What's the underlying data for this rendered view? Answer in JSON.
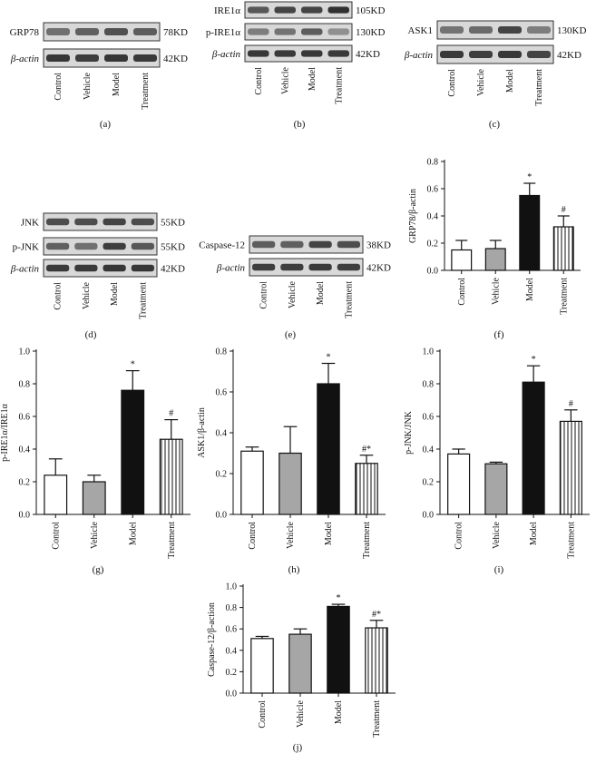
{
  "blots": [
    {
      "caption": "(a)",
      "lanes": [
        "Control",
        "Vehicle",
        "Model",
        "Treatment"
      ],
      "rows": [
        {
          "label": "GRP78",
          "italic": false,
          "kd": "78KD",
          "density": [
            0.62,
            0.7,
            0.78,
            0.72
          ]
        },
        {
          "label": "β-actin",
          "italic": true,
          "kd": "42KD",
          "density": [
            0.92,
            0.88,
            0.92,
            0.9
          ]
        }
      ]
    },
    {
      "caption": "(b)",
      "lanes": [
        "Control",
        "Vehicle",
        "Model",
        "Treatment"
      ],
      "rows": [
        {
          "label": "IRE1α",
          "italic": false,
          "kd": "105KD",
          "density": [
            0.75,
            0.85,
            0.85,
            0.95
          ]
        },
        {
          "label": "p-IRE1α",
          "italic": false,
          "kd": "130KD",
          "density": [
            0.55,
            0.6,
            0.72,
            0.45
          ]
        },
        {
          "label": "β-actin",
          "italic": true,
          "kd": "42KD",
          "density": [
            0.92,
            0.9,
            0.92,
            0.9
          ]
        }
      ]
    },
    {
      "caption": "(c)",
      "lanes": [
        "Control",
        "Vehicle",
        "Model",
        "Treatment"
      ],
      "rows": [
        {
          "label": "ASK1",
          "italic": false,
          "kd": "130KD",
          "density": [
            0.6,
            0.65,
            0.85,
            0.55
          ]
        },
        {
          "label": "β-actin",
          "italic": true,
          "kd": "42KD",
          "density": [
            0.9,
            0.88,
            0.92,
            0.85
          ]
        }
      ]
    },
    {
      "caption": "(d)",
      "lanes": [
        "Control",
        "Vehicle",
        "Model",
        "Treatment"
      ],
      "rows": [
        {
          "label": "JNK",
          "italic": false,
          "kd": "55KD",
          "density": [
            0.8,
            0.8,
            0.85,
            0.8
          ]
        },
        {
          "label": "p-JNK",
          "italic": false,
          "kd": "55KD",
          "density": [
            0.7,
            0.62,
            0.88,
            0.75
          ]
        },
        {
          "label": "β-actin",
          "italic": true,
          "kd": "42KD",
          "density": [
            0.9,
            0.9,
            0.92,
            0.92
          ]
        }
      ]
    },
    {
      "caption": "(e)",
      "lanes": [
        "Control",
        "Vehicle",
        "Model",
        "Treatment"
      ],
      "rows": [
        {
          "label": "Caspase-12",
          "italic": false,
          "kd": "38KD",
          "density": [
            0.72,
            0.7,
            0.85,
            0.8
          ]
        },
        {
          "label": "β-actin",
          "italic": true,
          "kd": "42KD",
          "density": [
            0.88,
            0.88,
            0.9,
            0.88
          ]
        }
      ]
    }
  ],
  "chart_data": [
    {
      "type": "bar",
      "caption": "(f)",
      "ylabel": "GRP78/β-actin",
      "categories": [
        "Control",
        "Vehicle",
        "Model",
        "Treatment"
      ],
      "values": [
        0.15,
        0.16,
        0.55,
        0.32
      ],
      "errors": [
        0.07,
        0.06,
        0.09,
        0.08
      ],
      "marks": [
        "",
        "",
        "*",
        "#"
      ],
      "ylim": [
        0,
        0.8
      ],
      "ticks": [
        "0.0",
        "0.2",
        "0.4",
        "0.6",
        "0.8"
      ],
      "fills": [
        "white",
        "gray",
        "black",
        "stripes"
      ]
    },
    {
      "type": "bar",
      "caption": "(g)",
      "ylabel": "p-IRE1α/IRE1α",
      "categories": [
        "Control",
        "Vehicle",
        "Model",
        "Treatment"
      ],
      "values": [
        0.24,
        0.2,
        0.76,
        0.46
      ],
      "errors": [
        0.1,
        0.04,
        0.12,
        0.12
      ],
      "marks": [
        "",
        "",
        "*",
        "#"
      ],
      "ylim": [
        0,
        1.0
      ],
      "ticks": [
        "0.0",
        "0.2",
        "0.4",
        "0.6",
        "0.8",
        "1.0"
      ],
      "fills": [
        "white",
        "gray",
        "black",
        "stripes"
      ]
    },
    {
      "type": "bar",
      "caption": "(h)",
      "ylabel": "ASK1/β-actin",
      "categories": [
        "Control",
        "Vehicle",
        "Model",
        "Treatment"
      ],
      "values": [
        0.31,
        0.3,
        0.64,
        0.25
      ],
      "errors": [
        0.02,
        0.13,
        0.1,
        0.04
      ],
      "marks": [
        "",
        "",
        "*",
        "#*"
      ],
      "ylim": [
        0,
        0.8
      ],
      "ticks": [
        "0.0",
        "0.2",
        "0.4",
        "0.6",
        "0.8"
      ],
      "fills": [
        "white",
        "gray",
        "black",
        "stripes"
      ]
    },
    {
      "type": "bar",
      "caption": "(i)",
      "ylabel": "p-JNK/JNK",
      "categories": [
        "Control",
        "Vehicle",
        "Model",
        "Treatment"
      ],
      "values": [
        0.37,
        0.31,
        0.81,
        0.57
      ],
      "errors": [
        0.03,
        0.01,
        0.1,
        0.07
      ],
      "marks": [
        "",
        "",
        "*",
        "#"
      ],
      "ylim": [
        0,
        1.0
      ],
      "ticks": [
        "0.0",
        "0.2",
        "0.4",
        "0.6",
        "0.8",
        "1.0"
      ],
      "fills": [
        "white",
        "gray",
        "black",
        "stripes"
      ]
    },
    {
      "type": "bar",
      "caption": "(j)",
      "ylabel": "Caspase-12/β-action",
      "categories": [
        "Control",
        "Vehicle",
        "Model",
        "Treatment"
      ],
      "values": [
        0.51,
        0.55,
        0.81,
        0.61
      ],
      "errors": [
        0.02,
        0.05,
        0.02,
        0.07
      ],
      "marks": [
        "",
        "",
        "*",
        "#*"
      ],
      "ylim": [
        0,
        1.0
      ],
      "ticks": [
        "0.0",
        "0.2",
        "0.4",
        "0.6",
        "0.8",
        "1.0"
      ],
      "fills": [
        "white",
        "gray",
        "black",
        "stripes"
      ]
    }
  ]
}
